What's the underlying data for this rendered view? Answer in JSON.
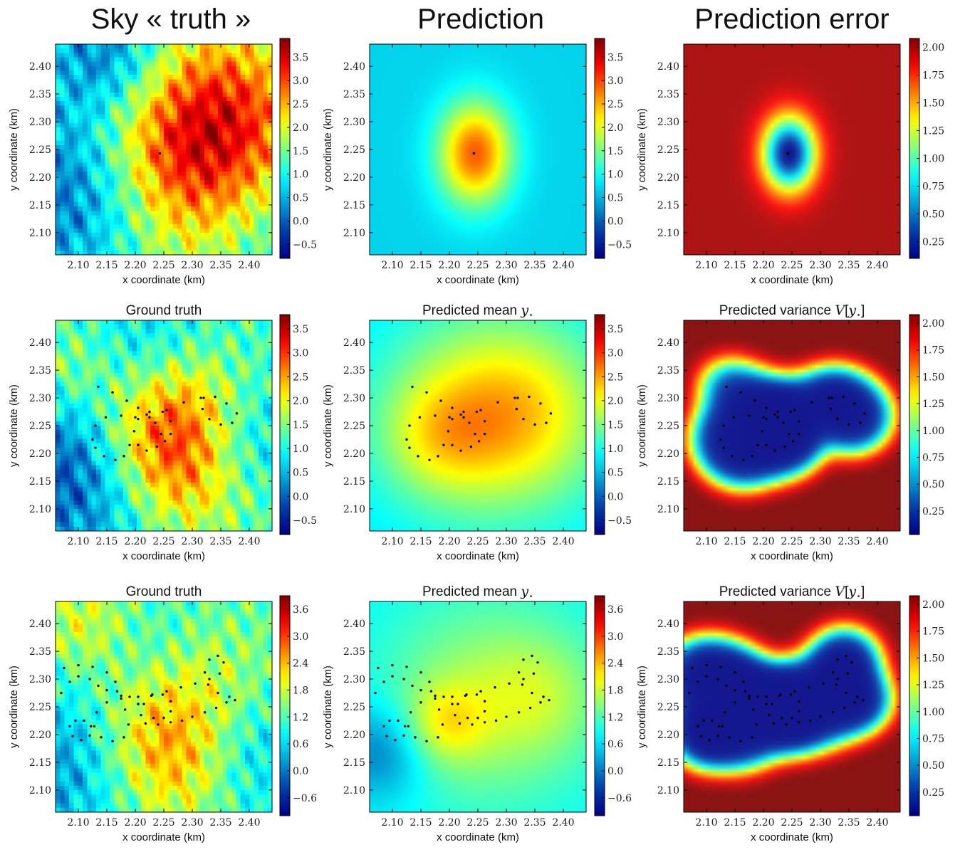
{
  "column_titles": [
    "Sky « truth »",
    "Prediction",
    "Prediction error"
  ],
  "chart_data": [
    {
      "type": "heatmap",
      "id": "r1c1",
      "kind": "truth1",
      "title": "",
      "xlabel": "x coordinate (km)",
      "ylabel": "y coordinate (km)",
      "xlim": [
        2.06,
        2.44
      ],
      "ylim": [
        2.06,
        2.44
      ],
      "xticks": [
        "2.10",
        "2.15",
        "2.20",
        "2.25",
        "2.30",
        "2.35",
        "2.40"
      ],
      "yticks": [
        "2.10",
        "2.15",
        "2.20",
        "2.25",
        "2.30",
        "2.35",
        "2.40"
      ],
      "colorbar": {
        "min": -0.8,
        "max": 3.9,
        "ticks": [
          "3.5",
          "3.0",
          "2.5",
          "2.0",
          "1.5",
          "1.0",
          "0.5",
          "0.0",
          "−0.5"
        ],
        "tick_values": [
          3.5,
          3.0,
          2.5,
          2.0,
          1.5,
          1.0,
          0.5,
          0.0,
          -0.5
        ]
      },
      "observations": [
        [
          2.243,
          2.243
        ]
      ]
    },
    {
      "type": "heatmap",
      "id": "r1c2",
      "kind": "mean1",
      "title": "",
      "xlabel": "x coordinate (km)",
      "ylabel": "y coordinate (km)",
      "xlim": [
        2.06,
        2.44
      ],
      "ylim": [
        2.06,
        2.44
      ],
      "xticks": [
        "2.10",
        "2.15",
        "2.20",
        "2.25",
        "2.30",
        "2.35",
        "2.40"
      ],
      "yticks": [
        "2.10",
        "2.15",
        "2.20",
        "2.25",
        "2.30",
        "2.35",
        "2.40"
      ],
      "colorbar": {
        "min": -0.8,
        "max": 3.9,
        "ticks": [
          "3.5",
          "3.0",
          "2.5",
          "2.0",
          "1.5",
          "1.0",
          "0.5",
          "0.0",
          "−0.5"
        ],
        "tick_values": [
          3.5,
          3.0,
          2.5,
          2.0,
          1.5,
          1.0,
          0.5,
          0.0,
          -0.5
        ]
      },
      "observations": [
        [
          2.243,
          2.243
        ]
      ]
    },
    {
      "type": "heatmap",
      "id": "r1c3",
      "kind": "var1",
      "title": "",
      "xlabel": "x coordinate (km)",
      "ylabel": "y coordinate (km)",
      "xlim": [
        2.06,
        2.44
      ],
      "ylim": [
        2.06,
        2.44
      ],
      "xticks": [
        "2.10",
        "2.15",
        "2.20",
        "2.25",
        "2.30",
        "2.35",
        "2.40"
      ],
      "yticks": [
        "2.10",
        "2.15",
        "2.20",
        "2.25",
        "2.30",
        "2.35",
        "2.40"
      ],
      "colorbar": {
        "min": 0.1,
        "max": 2.08,
        "ticks": [
          "2.00",
          "1.75",
          "1.50",
          "1.25",
          "1.00",
          "0.75",
          "0.50",
          "0.25"
        ],
        "tick_values": [
          2.0,
          1.75,
          1.5,
          1.25,
          1.0,
          0.75,
          0.5,
          0.25
        ]
      },
      "observations": [
        [
          2.243,
          2.243
        ]
      ]
    },
    {
      "type": "heatmap",
      "id": "r2c1",
      "kind": "truth2",
      "title": "Ground truth",
      "xlabel": "x coordinate (km)",
      "ylabel": "y coordinate (km)",
      "xlim": [
        2.06,
        2.44
      ],
      "ylim": [
        2.06,
        2.44
      ],
      "xticks": [
        "2.10",
        "2.15",
        "2.20",
        "2.25",
        "2.30",
        "2.35",
        "2.40"
      ],
      "yticks": [
        "2.10",
        "2.15",
        "2.20",
        "2.25",
        "2.30",
        "2.35",
        "2.40"
      ],
      "colorbar": {
        "min": -0.8,
        "max": 3.8,
        "ticks": [
          "3.5",
          "3.0",
          "2.5",
          "2.0",
          "1.5",
          "1.0",
          "0.5",
          "0.0",
          "−0.5"
        ],
        "tick_values": [
          3.5,
          3.0,
          2.5,
          2.0,
          1.5,
          1.0,
          0.5,
          0.0,
          -0.5
        ]
      },
      "trajectory": "traj2"
    },
    {
      "type": "heatmap",
      "id": "r2c2",
      "kind": "mean2",
      "title": "Predicted mean",
      "title_math": "y",
      "xlabel": "x coordinate (km)",
      "ylabel": "y coordinate (km)",
      "xlim": [
        2.06,
        2.44
      ],
      "ylim": [
        2.06,
        2.44
      ],
      "xticks": [
        "2.10",
        "2.15",
        "2.20",
        "2.25",
        "2.30",
        "2.35",
        "2.40"
      ],
      "yticks": [
        "2.10",
        "2.15",
        "2.20",
        "2.25",
        "2.30",
        "2.35",
        "2.40"
      ],
      "colorbar": {
        "min": -0.8,
        "max": 3.8,
        "ticks": [
          "3.5",
          "3.0",
          "2.5",
          "2.0",
          "1.5",
          "1.0",
          "0.5",
          "0.0",
          "−0.5"
        ],
        "tick_values": [
          3.5,
          3.0,
          2.5,
          2.0,
          1.5,
          1.0,
          0.5,
          0.0,
          -0.5
        ]
      },
      "trajectory": "traj2"
    },
    {
      "type": "heatmap",
      "id": "r2c3",
      "kind": "var2",
      "title": "Predicted variance",
      "title_math": "V[y",
      "xlabel": "x coordinate (km)",
      "ylabel": "y coordinate (km)",
      "xlim": [
        2.06,
        2.44
      ],
      "ylim": [
        2.06,
        2.44
      ],
      "xticks": [
        "2.10",
        "2.15",
        "2.20",
        "2.25",
        "2.30",
        "2.35",
        "2.40"
      ],
      "yticks": [
        "2.10",
        "2.15",
        "2.20",
        "2.25",
        "2.30",
        "2.35",
        "2.40"
      ],
      "colorbar": {
        "min": 0.03,
        "max": 2.08,
        "ticks": [
          "2.00",
          "1.75",
          "1.50",
          "1.25",
          "1.00",
          "0.75",
          "0.50",
          "0.25"
        ],
        "tick_values": [
          2.0,
          1.75,
          1.5,
          1.25,
          1.0,
          0.75,
          0.5,
          0.25
        ]
      },
      "trajectory": "traj2"
    },
    {
      "type": "heatmap",
      "id": "r3c1",
      "kind": "truth3",
      "title": "Ground truth",
      "xlabel": "x coordinate (km)",
      "ylabel": "y coordinate (km)",
      "xlim": [
        2.06,
        2.44
      ],
      "ylim": [
        2.06,
        2.44
      ],
      "xticks": [
        "2.10",
        "2.15",
        "2.20",
        "2.25",
        "2.30",
        "2.35",
        "2.40"
      ],
      "yticks": [
        "2.10",
        "2.15",
        "2.20",
        "2.25",
        "2.30",
        "2.35",
        "2.40"
      ],
      "colorbar": {
        "min": -1.0,
        "max": 3.9,
        "ticks": [
          "3.6",
          "3.0",
          "2.4",
          "1.8",
          "1.2",
          "0.6",
          "0.0",
          "−0.6"
        ],
        "tick_values": [
          3.6,
          3.0,
          2.4,
          1.8,
          1.2,
          0.6,
          0.0,
          -0.6
        ]
      },
      "trajectory": "traj3"
    },
    {
      "type": "heatmap",
      "id": "r3c2",
      "kind": "mean3",
      "title": "Predicted mean",
      "title_math": "y",
      "xlabel": "x coordinate (km)",
      "ylabel": "y coordinate (km)",
      "xlim": [
        2.06,
        2.44
      ],
      "ylim": [
        2.06,
        2.44
      ],
      "xticks": [
        "2.10",
        "2.15",
        "2.20",
        "2.25",
        "2.30",
        "2.35",
        "2.40"
      ],
      "yticks": [
        "2.10",
        "2.15",
        "2.20",
        "2.25",
        "2.30",
        "2.35",
        "2.40"
      ],
      "colorbar": {
        "min": -1.0,
        "max": 3.9,
        "ticks": [
          "3.6",
          "3.0",
          "2.4",
          "1.8",
          "1.2",
          "0.6",
          "0.0",
          "−0.6"
        ],
        "tick_values": [
          3.6,
          3.0,
          2.4,
          1.8,
          1.2,
          0.6,
          0.0,
          -0.6
        ]
      },
      "trajectory": "traj3"
    },
    {
      "type": "heatmap",
      "id": "r3c3",
      "kind": "var3",
      "title": "Predicted variance",
      "title_math": "V[y",
      "xlabel": "x coordinate (km)",
      "ylabel": "y coordinate (km)",
      "xlim": [
        2.06,
        2.44
      ],
      "ylim": [
        2.06,
        2.44
      ],
      "xticks": [
        "2.10",
        "2.15",
        "2.20",
        "2.25",
        "2.30",
        "2.35",
        "2.40"
      ],
      "yticks": [
        "2.10",
        "2.15",
        "2.20",
        "2.25",
        "2.30",
        "2.35",
        "2.40"
      ],
      "colorbar": {
        "min": 0.03,
        "max": 2.08,
        "ticks": [
          "2.00",
          "1.75",
          "1.50",
          "1.25",
          "1.00",
          "0.75",
          "0.50",
          "0.25"
        ],
        "tick_values": [
          2.0,
          1.75,
          1.5,
          1.25,
          1.0,
          0.75,
          0.5,
          0.25
        ]
      },
      "trajectory": "traj3"
    }
  ],
  "trajectories": {
    "traj2": [
      [
        [
          2.135,
          2.32
        ],
        [
          2.16,
          2.31
        ],
        [
          2.185,
          2.295
        ],
        [
          2.205,
          2.282
        ],
        [
          2.22,
          2.27
        ],
        [
          2.235,
          2.255
        ],
        [
          2.245,
          2.235
        ],
        [
          2.238,
          2.212
        ],
        [
          2.22,
          2.205
        ],
        [
          2.205,
          2.215
        ],
        [
          2.198,
          2.24
        ],
        [
          2.205,
          2.262
        ],
        [
          2.225,
          2.275
        ],
        [
          2.248,
          2.275
        ],
        [
          2.262,
          2.258
        ],
        [
          2.262,
          2.235
        ],
        [
          2.252,
          2.222
        ]
      ],
      [
        [
          2.125,
          2.225
        ],
        [
          2.13,
          2.25
        ],
        [
          2.148,
          2.265
        ],
        [
          2.175,
          2.268
        ],
        [
          2.2,
          2.265
        ],
        [
          2.225,
          2.265
        ],
        [
          2.255,
          2.278
        ],
        [
          2.285,
          2.292
        ],
        [
          2.315,
          2.3
        ],
        [
          2.34,
          2.302
        ],
        [
          2.36,
          2.29
        ],
        [
          2.378,
          2.272
        ],
        [
          2.37,
          2.255
        ],
        [
          2.35,
          2.252
        ],
        [
          2.33,
          2.262
        ],
        [
          2.318,
          2.28
        ],
        [
          2.32,
          2.3
        ]
      ],
      [
        [
          2.13,
          2.21
        ],
        [
          2.145,
          2.195
        ],
        [
          2.165,
          2.188
        ],
        [
          2.18,
          2.195
        ],
        [
          2.19,
          2.215
        ]
      ]
    ],
    "traj3": [
      [
        [
          2.075,
          2.32
        ],
        [
          2.1,
          2.325
        ],
        [
          2.125,
          2.322
        ],
        [
          2.15,
          2.312
        ],
        [
          2.165,
          2.295
        ],
        [
          2.175,
          2.27
        ],
        [
          2.182,
          2.245
        ],
        [
          2.188,
          2.218
        ],
        [
          2.18,
          2.195
        ],
        [
          2.16,
          2.188
        ],
        [
          2.14,
          2.195
        ],
        [
          2.128,
          2.215
        ],
        [
          2.132,
          2.24
        ],
        [
          2.15,
          2.258
        ],
        [
          2.175,
          2.265
        ],
        [
          2.205,
          2.268
        ],
        [
          2.23,
          2.272
        ],
        [
          2.255,
          2.278
        ],
        [
          2.28,
          2.285
        ],
        [
          2.305,
          2.292
        ],
        [
          2.33,
          2.3
        ],
        [
          2.348,
          2.31
        ],
        [
          2.355,
          2.33
        ],
        [
          2.345,
          2.342
        ],
        [
          2.33,
          2.335
        ],
        [
          2.322,
          2.312
        ],
        [
          2.328,
          2.29
        ],
        [
          2.345,
          2.275
        ],
        [
          2.365,
          2.268
        ],
        [
          2.375,
          2.262
        ]
      ],
      [
        [
          2.07,
          2.275
        ],
        [
          2.085,
          2.295
        ],
        [
          2.1,
          2.305
        ],
        [
          2.12,
          2.3
        ],
        [
          2.135,
          2.288
        ],
        [
          2.15,
          2.28
        ],
        [
          2.168,
          2.278
        ],
        [
          2.19,
          2.268
        ],
        [
          2.205,
          2.255
        ],
        [
          2.21,
          2.235
        ],
        [
          2.218,
          2.22
        ],
        [
          2.24,
          2.218
        ],
        [
          2.262,
          2.222
        ],
        [
          2.282,
          2.225
        ],
        [
          2.3,
          2.232
        ],
        [
          2.322,
          2.24
        ],
        [
          2.342,
          2.248
        ],
        [
          2.36,
          2.258
        ]
      ],
      [
        [
          2.085,
          2.215
        ],
        [
          2.09,
          2.197
        ],
        [
          2.105,
          2.19
        ],
        [
          2.12,
          2.198
        ],
        [
          2.122,
          2.215
        ],
        [
          2.11,
          2.225
        ],
        [
          2.095,
          2.225
        ]
      ],
      [
        [
          2.215,
          2.255
        ],
        [
          2.228,
          2.27
        ],
        [
          2.248,
          2.272
        ],
        [
          2.262,
          2.26
        ],
        [
          2.262,
          2.242
        ],
        [
          2.25,
          2.23
        ],
        [
          2.232,
          2.23
        ]
      ]
    ]
  }
}
